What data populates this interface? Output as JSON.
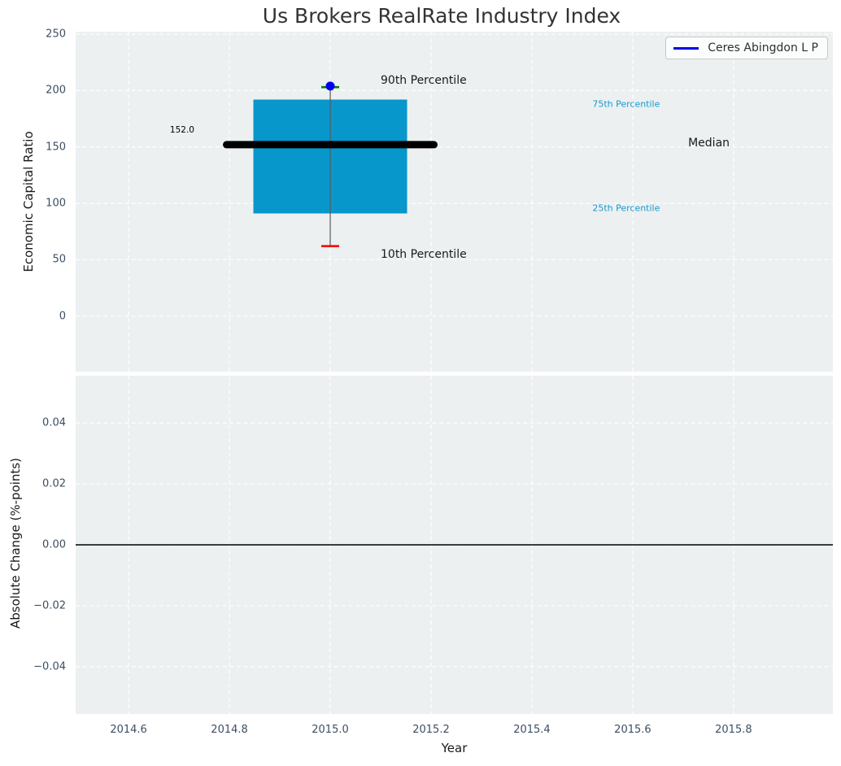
{
  "colors": {
    "figure_bg": "#ffffff",
    "axes_bg": "#ecf0f1",
    "grid": "#ffffff",
    "tick_label": "#3d4e62",
    "title": "#333333",
    "axis_label": "#1a1a1a"
  },
  "chart_data": [
    {
      "type": "boxplot",
      "title": "Us Brokers RealRate Industry Index",
      "xlabel": "",
      "ylabel": "Economic Capital Ratio",
      "xlim": [
        2014.495,
        2015.997
      ],
      "ylim": [
        -49.3,
        252.2
      ],
      "grid": "on-dashed-white",
      "yticks": [
        250,
        200,
        150,
        100,
        50,
        0
      ],
      "ytick_labels": [
        "250",
        "200",
        "150",
        "100",
        "50",
        "0"
      ],
      "xticks": [
        2014.6,
        2014.8,
        2015.0,
        2015.2,
        2015.4,
        2015.6,
        2015.8
      ],
      "xtick_labels": [
        "2014.6",
        "2014.8",
        "2015.0",
        "2015.2",
        "2015.4",
        "2015.6",
        "2015.8"
      ],
      "box": {
        "x": 2015.0,
        "p10": 62,
        "p25": 91,
        "median": 152,
        "p75": 192,
        "p90": 203,
        "median_label": "152.0",
        "box_color": "#0897cb",
        "median_color": "#000000",
        "whisker_color": "#5a5a5a",
        "p90_cap_color": "#008000",
        "p10_cap_color": "#ff0000"
      },
      "company_point": {
        "x": 2015.0,
        "value": 204,
        "color": "#0000ee"
      },
      "legend": {
        "label": "Ceres Abingdon L P",
        "line_color": "#0000ee",
        "position": "upper right"
      },
      "annotations": [
        {
          "text": "90th Percentile",
          "x": 2015.1,
          "y": 209.0,
          "color": "#1a1a1a",
          "size": 14
        },
        {
          "text": "10th Percentile",
          "x": 2015.1,
          "y": 54.5,
          "color": "#1a1a1a",
          "size": 14
        },
        {
          "text": "75th Percentile",
          "x": 2015.52,
          "y": 188.3,
          "color": "#179acd",
          "size": 11
        },
        {
          "text": "25th Percentile",
          "x": 2015.52,
          "y": 95.6,
          "color": "#179acd",
          "size": 11
        },
        {
          "text": "Median",
          "x": 2015.71,
          "y": 153.7,
          "color": "#1a1a1a",
          "size": 14
        },
        {
          "text": "152.0",
          "x": 2014.682,
          "y": 165.2,
          "color": "#000000",
          "size": 10.5
        }
      ]
    },
    {
      "type": "line",
      "title": "",
      "xlabel": "Year",
      "ylabel": "Absolute Change (%-points)",
      "xlim": [
        2014.495,
        2015.997
      ],
      "ylim": [
        -0.0555,
        0.0555
      ],
      "grid": "on-dashed-white",
      "yticks": [
        0.04,
        0.02,
        0.0,
        -0.02,
        -0.04
      ],
      "ytick_labels": [
        "0.04",
        "0.02",
        "0.00",
        "−0.02",
        "−0.04"
      ],
      "xticks": [
        2014.6,
        2014.8,
        2015.0,
        2015.2,
        2015.4,
        2015.6,
        2015.8
      ],
      "xtick_labels": [
        "2014.6",
        "2014.8",
        "2015.0",
        "2015.2",
        "2015.4",
        "2015.6",
        "2015.8"
      ],
      "series": [],
      "zero_line": {
        "y": 0.0,
        "color": "#000000"
      }
    }
  ]
}
